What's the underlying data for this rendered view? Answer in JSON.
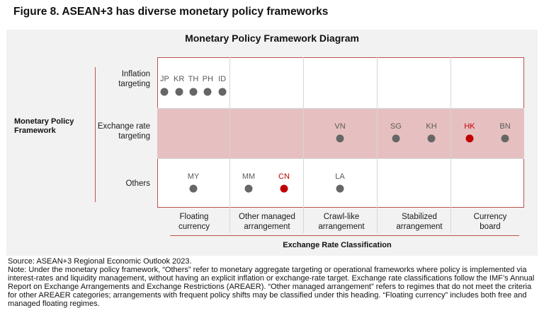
{
  "figure_title": "Figure 8. ASEAN+3 has diverse monetary policy frameworks",
  "diagram_title": "Monetary Policy Framework Diagram",
  "y_axis_title": "Monetary Policy Framework",
  "x_axis_title": "Exchange Rate Classification",
  "rows": [
    {
      "label": "Inflation targeting"
    },
    {
      "label": "Exchange rate targeting"
    },
    {
      "label": "Others"
    }
  ],
  "columns": [
    {
      "label": "Floating currency"
    },
    {
      "label": "Other managed arrangement"
    },
    {
      "label": "Crawl-like arrangement"
    },
    {
      "label": "Stabilized arrangement"
    },
    {
      "label": "Currency board"
    }
  ],
  "countries": [
    {
      "code": "JP",
      "row": 0,
      "col": 0,
      "highlight": false
    },
    {
      "code": "KR",
      "row": 0,
      "col": 0,
      "highlight": false
    },
    {
      "code": "TH",
      "row": 0,
      "col": 0,
      "highlight": false
    },
    {
      "code": "PH",
      "row": 0,
      "col": 0,
      "highlight": false
    },
    {
      "code": "ID",
      "row": 0,
      "col": 0,
      "highlight": false
    },
    {
      "code": "VN",
      "row": 1,
      "col": 2,
      "highlight": false
    },
    {
      "code": "SG",
      "row": 1,
      "col": 3,
      "highlight": false
    },
    {
      "code": "KH",
      "row": 1,
      "col": 3,
      "highlight": false
    },
    {
      "code": "HK",
      "row": 1,
      "col": 4,
      "highlight": true
    },
    {
      "code": "BN",
      "row": 1,
      "col": 4,
      "highlight": false
    },
    {
      "code": "MY",
      "row": 2,
      "col": 0,
      "highlight": false
    },
    {
      "code": "MM",
      "row": 2,
      "col": 1,
      "highlight": false
    },
    {
      "code": "CN",
      "row": 2,
      "col": 1,
      "highlight": true
    },
    {
      "code": "LA",
      "row": 2,
      "col": 2,
      "highlight": false
    }
  ],
  "colors": {
    "accent": "#c0504d",
    "band": "#e6c0c1",
    "highlight": "#c00000",
    "dot": "#666666"
  },
  "source": "Source: ASEAN+3 Regional Economic Outlook 2023.",
  "note": "Note: Under the monetary policy framework, “Others” refer to monetary aggregate targeting or operational frameworks where policy is implemented via interest-rates and liquidity management, without having an explicit inflation or exchange-rate target. Exchange rate classifications follow the IMF’s Annual Report on Exchange Arrangements and Exchange Restrictions (AREAER). “Other managed arrangement” refers to regimes that do not meet the criteria for other AREAER categories; arrangements with frequent policy shifts may be classified under this heading. “Floating currency” includes both free and managed floating regimes."
}
